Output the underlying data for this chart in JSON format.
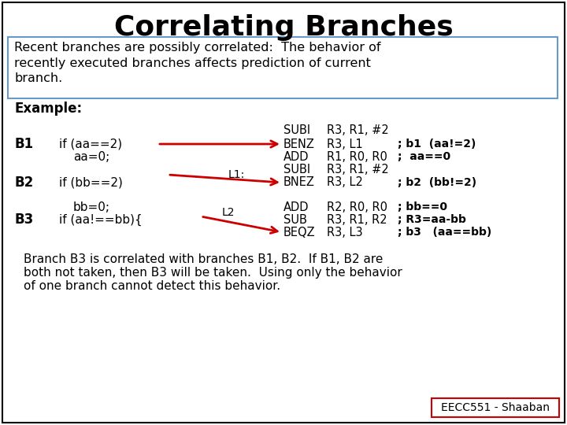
{
  "title": "Correlating Branches",
  "title_fontsize": 26,
  "bg_color": "#ffffff",
  "border_color": "#000000",
  "box_border_color": "#6699cc",
  "text_color": "#000000",
  "red_color": "#cc0000",
  "intro_line1": "Recent branches are possibly correlated:  The behavior of",
  "intro_line2": "recently executed branches affects prediction of current",
  "intro_line3": "branch.",
  "example_label": "Example:",
  "b1_label": "B1",
  "b1_code": "if (aa==2)",
  "b1_code2": "aa=0;",
  "b2_label": "B2",
  "b2_code": "if (bb==2)",
  "b2_code2": "bb=0;",
  "b3_label": "B3",
  "b3_code": "if (aa!==bb){",
  "l1_label": "L1:",
  "l2_label": "L2",
  "asm_col1": [
    "SUBI",
    "BENZ",
    "ADD",
    "SUBI",
    "BNEZ",
    "ADD",
    "SUB",
    "BEQZ"
  ],
  "asm_col2": [
    "R3, R1, #2",
    "R3, L1",
    "R1, R0, R0",
    "R3, R1, #2",
    "R3, L2",
    "R2, R0, R0",
    "R3, R1, R2",
    "R3, L3"
  ],
  "asm_col3": [
    "",
    "; b1  (aa!=2)",
    ";  aa==0",
    "",
    "; b2  (bb!=2)",
    "; bb==0",
    "; R3=aa-bb",
    "; b3   (aa==bb)"
  ],
  "bottom_line1": "Branch B3 is correlated with branches B1, B2.  If B1, B2 are",
  "bottom_line2": "both not taken, then B3 will be taken.  Using only the behavior",
  "bottom_line3": "of one branch cannot detect this behavior.",
  "footer_text": "EECC551 - Shaaban",
  "footer_border_color": "#cc0000"
}
